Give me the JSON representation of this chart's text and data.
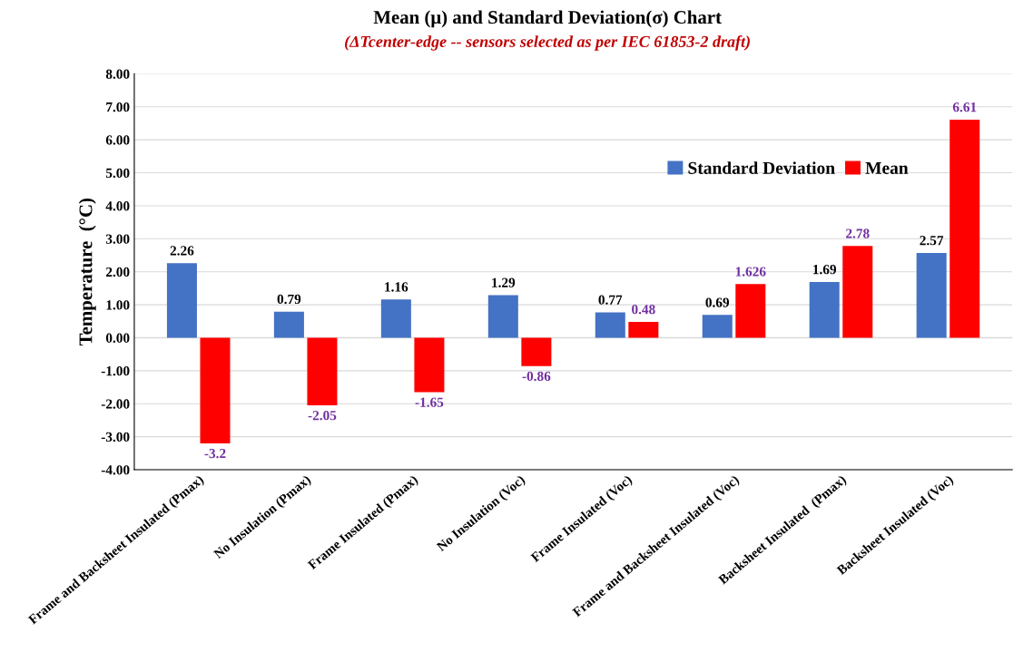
{
  "chart_data": {
    "type": "bar",
    "title": "Mean (μ) and Standard Deviation(σ) Chart",
    "subtitle": "(ΔTcenter-edge -- sensors selected as per IEC 61853-2 draft)",
    "ylabel": "Temperature  (°C)",
    "categories": [
      "Frame and Backsheet Insulated (Pmax)",
      "No Insulation (Pmax)",
      "Frame Insulated (Pmax)",
      "No Insulation (Voc)",
      "Frame Insulated (Voc)",
      "Frame and Backsheet Insulated (Voc)",
      "Backsheet Insulated  (Pmax)",
      "Backsheet Insulated (Voc)"
    ],
    "series": [
      {
        "name": "Standard Deviation",
        "color": "#4472c4",
        "values": [
          2.26,
          0.79,
          1.16,
          1.29,
          0.77,
          0.69,
          1.69,
          2.57
        ]
      },
      {
        "name": "Mean",
        "color": "#ff0000",
        "values": [
          -3.2,
          -2.05,
          -1.65,
          -0.86,
          0.48,
          1.626,
          2.78,
          6.61
        ]
      }
    ],
    "ylim": [
      -4,
      8
    ],
    "yticks": [
      {
        "value": -4,
        "label": "-4.00"
      },
      {
        "value": -3,
        "label": "-3.00"
      },
      {
        "value": -2,
        "label": "-2.00"
      },
      {
        "value": -1,
        "label": "-1.00"
      },
      {
        "value": 0,
        "label": "0.00"
      },
      {
        "value": 1,
        "label": "1.00"
      },
      {
        "value": 2,
        "label": "2.00"
      },
      {
        "value": 3,
        "label": "3.00"
      },
      {
        "value": 4,
        "label": "4.00"
      },
      {
        "value": 5,
        "label": "5.00"
      },
      {
        "value": 6,
        "label": "6.00"
      },
      {
        "value": 7,
        "label": "7.00"
      },
      {
        "value": 8,
        "label": "8.00"
      }
    ],
    "grid": "y",
    "legend": "top right",
    "data_labels": true
  }
}
